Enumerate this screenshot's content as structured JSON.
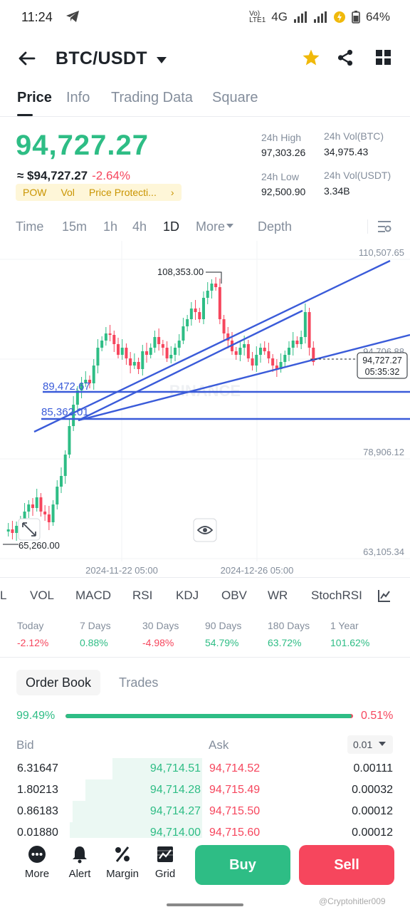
{
  "status_bar": {
    "time": "11:24",
    "network_top": "Vo)",
    "network_bottom": "LTE1",
    "network_type": "4G",
    "battery": "64%"
  },
  "header": {
    "pair": "BTC/USDT",
    "icons": [
      "back-arrow-icon",
      "caret-down-icon",
      "star-icon",
      "share-icon",
      "grid-icon"
    ],
    "star_color": "#f0b90b"
  },
  "tabs": [
    "Price",
    "Info",
    "Trading Data",
    "Square"
  ],
  "price": {
    "last": "94,727.27",
    "fiat": "≈ $94,727.27",
    "change": "-2.64%",
    "tags": [
      "POW",
      "Vol",
      "Price Protecti..."
    ],
    "tag_more": "›"
  },
  "stats": {
    "high_label": "24h High",
    "high": "97,303.26",
    "vol_btc_label": "24h Vol(BTC)",
    "vol_btc": "34,975.43",
    "low_label": "24h Low",
    "low": "92,500.90",
    "vol_usdt_label": "24h Vol(USDT)",
    "vol_usdt": "3.34B"
  },
  "timeframes": [
    "Time",
    "15m",
    "1h",
    "4h",
    "1D",
    "More",
    "Depth"
  ],
  "active_timeframe": "1D",
  "chart": {
    "price_labels": [
      "110,507.65",
      "94,706.88",
      "78,906.12",
      "63,105.34"
    ],
    "high_label": "108,353.00",
    "low_label": "65,260.00",
    "current_price": "94,727.27",
    "countdown": "05:35:32",
    "level_1": "89,472.67",
    "level_2": "85,362.01",
    "dates": [
      "2024-11-22 05:00",
      "2024-12-26 05:00"
    ],
    "watermark": "BINANCE",
    "icons": [
      "expand-icon",
      "eye-icon"
    ]
  },
  "indicators": [
    "L",
    "VOL",
    "MACD",
    "RSI",
    "KDJ",
    "OBV",
    "WR",
    "StochRSI"
  ],
  "performance": [
    {
      "label": "Today",
      "value": "-2.12%",
      "dir": "down"
    },
    {
      "label": "7 Days",
      "value": "0.88%",
      "dir": "up"
    },
    {
      "label": "30 Days",
      "value": "-4.98%",
      "dir": "down"
    },
    {
      "label": "90 Days",
      "value": "54.79%",
      "dir": "up"
    },
    {
      "label": "180 Days",
      "value": "63.72%",
      "dir": "up"
    },
    {
      "label": "1 Year",
      "value": "101.62%",
      "dir": "up"
    }
  ],
  "order_book": {
    "tabs": [
      "Order Book",
      "Trades"
    ],
    "bid_ratio": "99.49%",
    "ask_ratio": "0.51%",
    "bid_fraction": 0.9949,
    "bid_label": "Bid",
    "ask_label": "Ask",
    "precision": "0.01",
    "rows": [
      {
        "bid_qty": "6.31647",
        "bid_px": "94,714.51",
        "ask_px": "94,714.52",
        "ask_qty": "0.00111"
      },
      {
        "bid_qty": "1.80213",
        "bid_px": "94,714.28",
        "ask_px": "94,715.49",
        "ask_qty": "0.00032"
      },
      {
        "bid_qty": "0.86183",
        "bid_px": "94,714.27",
        "ask_px": "94,715.50",
        "ask_qty": "0.00012"
      },
      {
        "bid_qty": "0.01880",
        "bid_px": "94,714.00",
        "ask_px": "94,715.60",
        "ask_qty": "0.00012"
      }
    ]
  },
  "bottom_bar": {
    "items": [
      "More",
      "Alert",
      "Margin",
      "Grid"
    ],
    "buy": "Buy",
    "sell": "Sell",
    "watermark": "@Cryptohitler009"
  }
}
